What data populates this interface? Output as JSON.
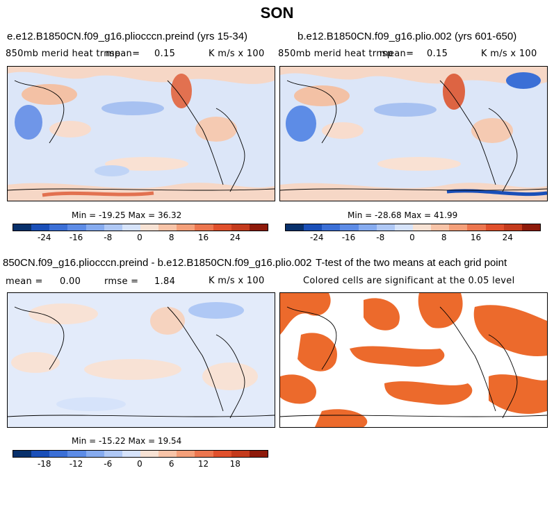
{
  "figure": {
    "title": "SON"
  },
  "panels": [
    {
      "title": "e.e12.B1850CN.f09_g16.pliocccn.preind (yrs 15-34)",
      "left_label": "850mb merid heat trnsp",
      "mean_label": "mean=",
      "mean_value": "0.15",
      "units": "K m/s x 100",
      "stats": "Min = -19.25 Max = 36.32"
    },
    {
      "title": "b.e12.B1850CN.f09_g16.plio.002 (yrs 601-650)",
      "left_label": "850mb merid heat trnsp",
      "mean_label": "mean=",
      "mean_value": "0.15",
      "units": "K m/s x 100",
      "stats": "Min = -28.68 Max = 41.99"
    },
    {
      "title": "850CN.f09_g16.pliocccn.preind - b.e12.B1850CN.f09_g16.plio.002",
      "mean_label": "mean =",
      "mean_value": "0.00",
      "rmse_label": "rmse =",
      "rmse_value": "1.84",
      "units": "K m/s x 100",
      "stats": "Min = -15.22 Max = 19.54"
    },
    {
      "title": "T-test of the two means at each grid point",
      "subtitle": "Colored cells are significant at the 0.05 level"
    }
  ],
  "colorbars": {
    "colors": [
      "#08306b",
      "#1a4fb8",
      "#3b6fd6",
      "#5d8ce6",
      "#86abef",
      "#afc8f5",
      "#d6e3fa",
      "#f7e2d4",
      "#f8c4a8",
      "#f4a07a",
      "#ec764f",
      "#e0502c",
      "#c43b1d",
      "#8e1a0a"
    ],
    "main_ticks": [
      "-24",
      "-16",
      "-8",
      "0",
      "8",
      "16",
      "24"
    ],
    "diff_ticks": [
      "-18",
      "-12",
      "-6",
      "0",
      "6",
      "12",
      "18"
    ]
  }
}
